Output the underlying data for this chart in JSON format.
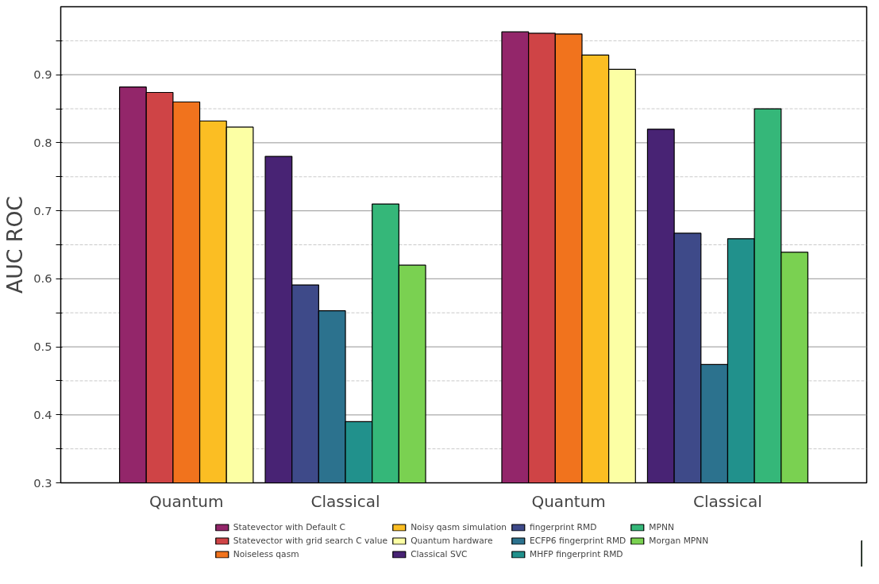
{
  "chart_data": {
    "type": "bar",
    "ylabel": "AUC ROC",
    "categories": [
      "Quantum",
      "Classical",
      "Quantum",
      "Classical"
    ],
    "series": [
      {
        "name": "Statevector with Default C",
        "color": "#93266a",
        "values": [
          0.882,
          null,
          0.963,
          null
        ]
      },
      {
        "name": "Statevector with grid search C value",
        "color": "#cf4446",
        "values": [
          0.874,
          null,
          0.961,
          null
        ]
      },
      {
        "name": "Noiseless qasm",
        "color": "#f1731d",
        "values": [
          0.86,
          null,
          0.96,
          null
        ]
      },
      {
        "name": "Noisy qasm simulation",
        "color": "#fbbe23",
        "values": [
          0.832,
          null,
          0.929,
          null
        ]
      },
      {
        "name": "Quantum hardware",
        "color": "#fcffa4",
        "values": [
          0.823,
          null,
          0.908,
          null
        ]
      },
      {
        "name": "Classical SVC",
        "color": "#482374",
        "values": [
          null,
          0.78,
          null,
          0.82
        ]
      },
      {
        "name": "fingerprint RMD",
        "color": "#3e4a89",
        "values": [
          null,
          0.591,
          null,
          0.667
        ]
      },
      {
        "name": "ECFP6 fingerprint RMD",
        "color": "#2c728e",
        "values": [
          null,
          0.553,
          null,
          0.474
        ]
      },
      {
        "name": "MHFP fingerprint RMD",
        "color": "#21918c",
        "values": [
          null,
          0.39,
          null,
          0.659
        ]
      },
      {
        "name": "MPNN",
        "color": "#35b779",
        "values": [
          null,
          0.71,
          null,
          0.85
        ]
      },
      {
        "name": "Morgan MPNN",
        "color": "#7ad151",
        "values": [
          null,
          0.62,
          null,
          0.639
        ]
      }
    ],
    "ylim": [
      0.3,
      1.0
    ],
    "yticks": [
      0.3,
      {
        "value": 0.35,
        "label": null
      },
      0.4,
      {
        "value": 0.45,
        "label": null
      },
      0.5,
      {
        "value": 0.55,
        "label": null
      },
      0.6,
      {
        "value": 0.65,
        "label": null
      },
      0.7,
      {
        "value": 0.75,
        "label": null
      },
      0.8,
      {
        "value": 0.85,
        "label": null
      },
      0.9,
      {
        "value": 0.95,
        "label": null
      }
    ],
    "grid": "y",
    "legend": "bottom"
  }
}
